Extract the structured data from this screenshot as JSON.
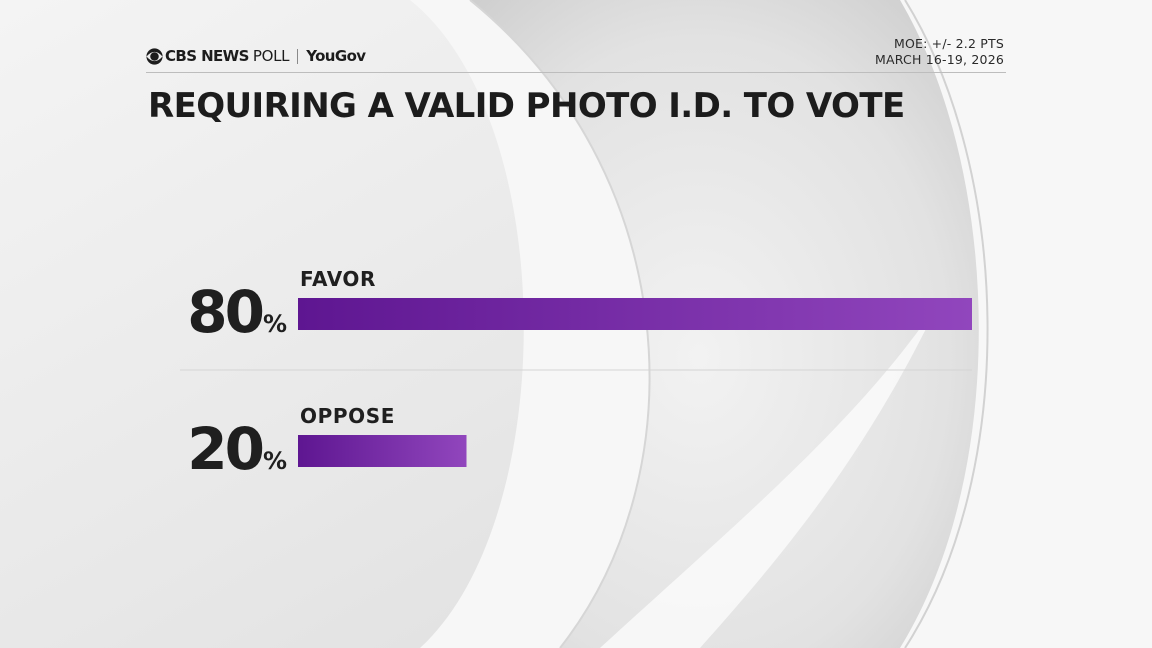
{
  "brand": {
    "network": "CBS NEWS",
    "poll": "POLL",
    "partner": "YouGov",
    "icon": "cbs-eye-icon"
  },
  "meta": {
    "moe": "MOE: +/- 2.2 PTS",
    "dates": "MARCH 16-19, 2026"
  },
  "colors": {
    "bar_start": "#5e1691",
    "bar_end": "#9146bd",
    "text": "#1f1f1f"
  },
  "chart_data": {
    "type": "bar",
    "orientation": "horizontal",
    "title": "REQUIRING A VALID PHOTO I.D. TO VOTE",
    "categories": [
      "FAVOR",
      "OPPOSE"
    ],
    "values": [
      80,
      20
    ],
    "value_labels": [
      "80",
      "20"
    ],
    "unit": "%",
    "xlim": [
      0,
      80
    ],
    "grid": false,
    "legend": "none"
  }
}
